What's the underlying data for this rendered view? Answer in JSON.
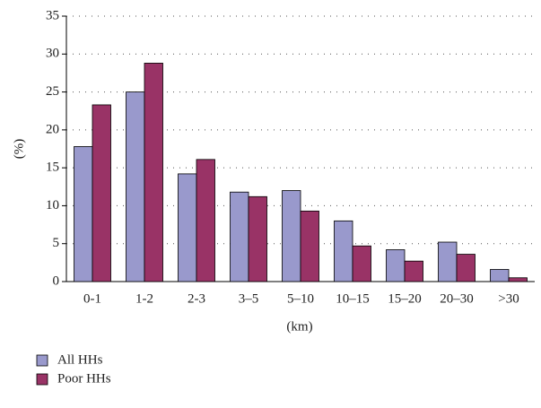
{
  "chart_data": {
    "type": "bar",
    "y_label": "(%)",
    "x_label": "(km)",
    "categories": [
      "0-1",
      "1-2",
      "2-3",
      "3–5",
      "5–10",
      "10–15",
      "15–20",
      "20–30",
      ">30"
    ],
    "series": [
      {
        "name": "All HHs",
        "color": "#9999cc",
        "values": [
          17.8,
          25,
          14.2,
          11.8,
          12,
          8,
          4.2,
          5.2,
          1.6
        ]
      },
      {
        "name": "Poor HHs",
        "color": "#993366",
        "values": [
          23.3,
          28.8,
          16.1,
          11.2,
          9.3,
          4.7,
          2.7,
          3.6,
          0.5
        ]
      }
    ],
    "ylim": [
      0,
      35
    ],
    "yticks": [
      0,
      5,
      10,
      15,
      20,
      25,
      30,
      35
    ],
    "grid": true
  }
}
